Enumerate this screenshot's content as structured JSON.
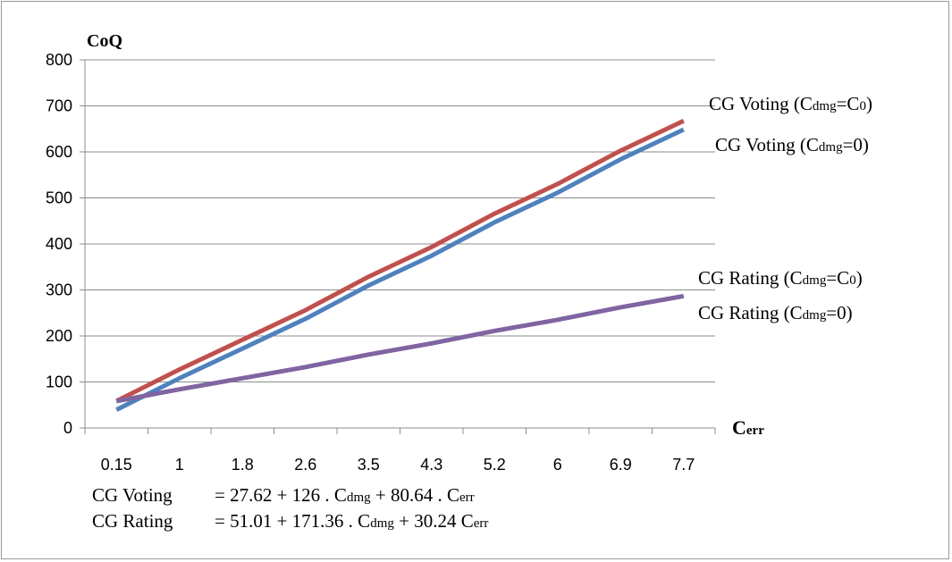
{
  "chart_data": {
    "type": "line",
    "ylabel": "CoQ",
    "xlabel": "Cerr",
    "xlabel_main": "C",
    "xlabel_sub": "err",
    "categories": [
      "0.15",
      "1",
      "1.8",
      "2.6",
      "3.5",
      "4.3",
      "5.2",
      "6",
      "6.9",
      "7.7"
    ],
    "ylim": [
      0,
      800
    ],
    "yticks": [
      "0",
      "100",
      "200",
      "300",
      "400",
      "500",
      "600",
      "700",
      "800"
    ],
    "grid": true,
    "series": [
      {
        "name": "CG Voting (Cdmg=0)",
        "color": "#4f81bd",
        "width": 5,
        "values": [
          39.7,
          108.2,
          172.7,
          237.2,
          309.8,
          374.3,
          446.9,
          511.4,
          583.9,
          648.5
        ]
      },
      {
        "name": "CG Voting (Cdmg=C0)",
        "color": "#c0504d",
        "width": 5,
        "values": [
          58.6,
          127.1,
          191.6,
          256.1,
          328.7,
          393.2,
          465.8,
          530.3,
          602.8,
          667.4
        ]
      },
      {
        "name": "CG Rating (Cdmg=0)",
        "color": "#9bbb59",
        "width": 2,
        "values": [
          55.5,
          81.3,
          105.4,
          129.6,
          156.9,
          181.0,
          208.3,
          232.5,
          259.7,
          283.9
        ]
      },
      {
        "name": "CG Rating (Cdmg=C0)",
        "color": "#8064a2",
        "width": 5,
        "values": [
          58.4,
          84.0,
          108.2,
          132.4,
          159.6,
          183.8,
          211.0,
          235.2,
          262.4,
          286.6
        ]
      }
    ],
    "annotations": [
      {
        "main": "CG Voting (C",
        "sub": "dmg",
        "mid": "=C",
        "sub2": "0",
        "end": ")"
      },
      {
        "main": "CG Voting (C",
        "sub": "dmg",
        "mid": "=0)",
        "sub2": "",
        "end": ""
      },
      {
        "main": "CG Rating (C",
        "sub": "dmg",
        "mid": "=C",
        "sub2": "0",
        "end": ")"
      },
      {
        "main": "CG Rating (C",
        "sub": "dmg",
        "mid": "=0)",
        "sub2": "",
        "end": ""
      }
    ],
    "equations": [
      {
        "lhs": "CG Voting",
        "p1": "= 27.62 + 126 . C",
        "s1": "dmg",
        "p2": " + 80.64 . C",
        "s2": "err"
      },
      {
        "lhs": "CG Rating",
        "p1": "= 51.01 + 171.36 . C",
        "s1": "dmg",
        "p2": " + 30.24 C",
        "s2": "err"
      }
    ]
  }
}
